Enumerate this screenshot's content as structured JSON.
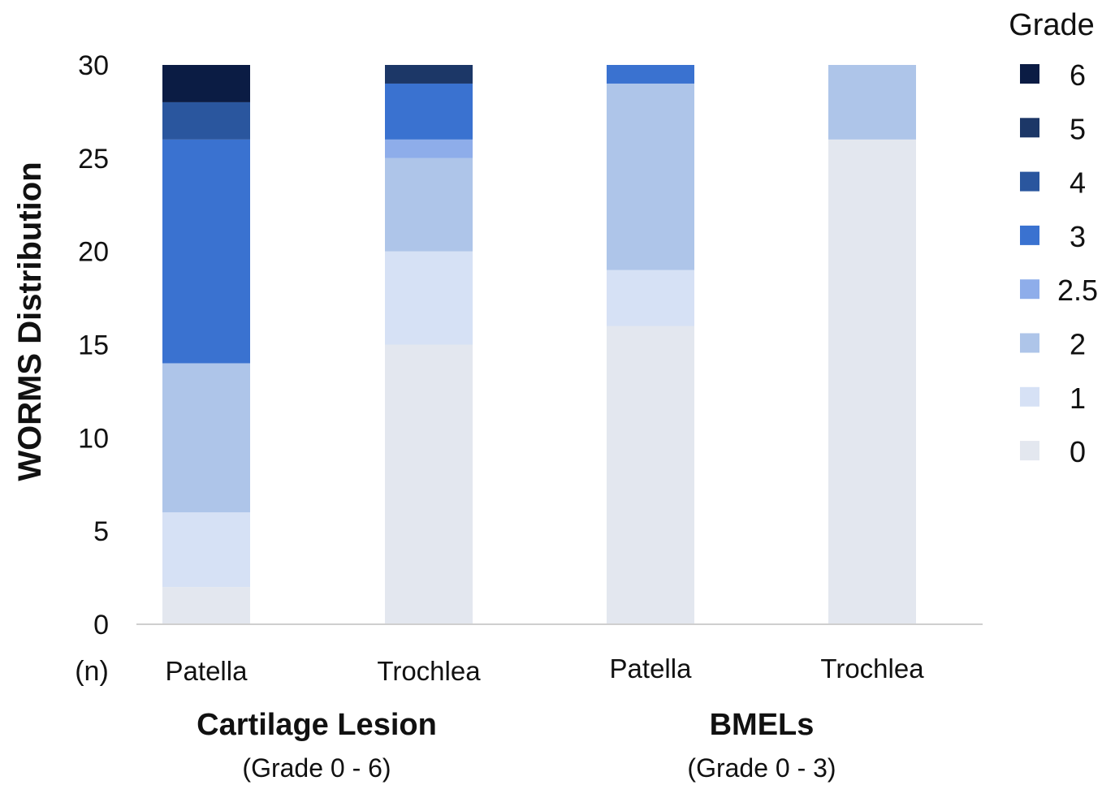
{
  "chart_data": {
    "type": "bar",
    "stacked": true,
    "ylabel": "WORMS Distribution",
    "ylim": [
      0,
      30
    ],
    "yticks": [
      0,
      5,
      10,
      15,
      20,
      25,
      30
    ],
    "x_unit_label": "(n)",
    "categories": [
      "Patella",
      "Trochlea",
      "Patella",
      "Trochlea"
    ],
    "groups": [
      {
        "title": "Cartilage Lesion",
        "subtitle": "(Grade 0 - 6)"
      },
      {
        "title": "BMELs",
        "subtitle": "(Grade 0 - 3)"
      }
    ],
    "legend_title": "Grade",
    "legend_position": "right",
    "grid": false,
    "series": [
      {
        "name": "0",
        "color": "#e3e7ef",
        "values": [
          2,
          15,
          16,
          26
        ]
      },
      {
        "name": "1",
        "color": "#d6e1f5",
        "values": [
          4,
          5,
          3,
          0
        ]
      },
      {
        "name": "2",
        "color": "#aec5e9",
        "values": [
          8,
          5,
          10,
          4
        ]
      },
      {
        "name": "2.5",
        "color": "#8eadea",
        "values": [
          0,
          1,
          0,
          0
        ]
      },
      {
        "name": "3",
        "color": "#3a72d0",
        "values": [
          12,
          3,
          1,
          0
        ]
      },
      {
        "name": "4",
        "color": "#2a569e",
        "values": [
          2,
          0,
          0,
          0
        ]
      },
      {
        "name": "5",
        "color": "#1c3767",
        "values": [
          0,
          1,
          0,
          0
        ]
      },
      {
        "name": "6",
        "color": "#0b1c44",
        "values": [
          2,
          0,
          0,
          0
        ]
      }
    ]
  }
}
